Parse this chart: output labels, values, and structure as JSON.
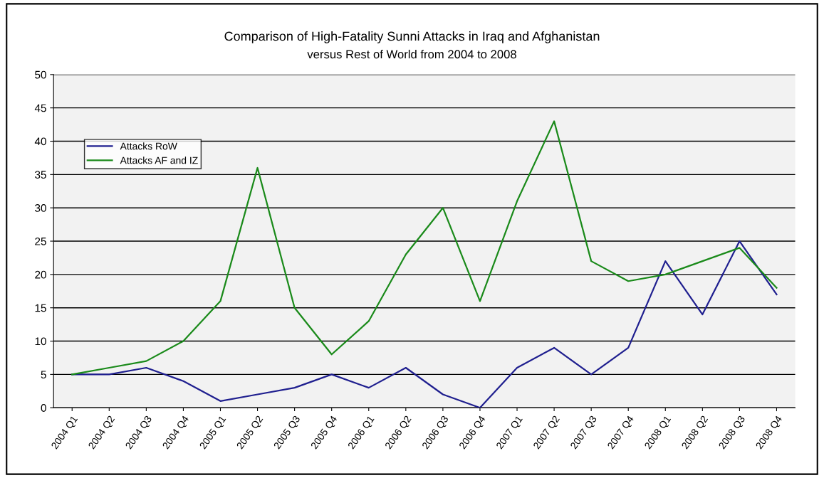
{
  "chart_data": {
    "type": "line",
    "title": "Comparison of High-Fatality Sunni Attacks in Iraq and Afghanistan",
    "subtitle": "versus Rest of World from 2004 to 2008",
    "categories": [
      "2004 Q1",
      "2004 Q2",
      "2004 Q3",
      "2004 Q4",
      "2005 Q1",
      "2005 Q2",
      "2005 Q3",
      "2005 Q4",
      "2006 Q1",
      "2006 Q2",
      "2006 Q3",
      "2006 Q4",
      "2007 Q1",
      "2007 Q2",
      "2007 Q3",
      "2007 Q4",
      "2008 Q1",
      "2008 Q2",
      "2008 Q3",
      "2008 Q4"
    ],
    "series": [
      {
        "name": "Attacks RoW",
        "color": "#1f1f8f",
        "values": [
          5,
          5,
          6,
          4,
          1,
          2,
          3,
          5,
          3,
          6,
          2,
          0,
          6,
          9,
          5,
          9,
          22,
          14,
          25,
          17
        ]
      },
      {
        "name": "Attacks AF and IZ",
        "color": "#1a8a1a",
        "values": [
          5,
          6,
          7,
          10,
          16,
          36,
          15,
          8,
          13,
          23,
          30,
          16,
          31,
          43,
          22,
          19,
          20,
          22,
          24,
          18
        ]
      }
    ],
    "ylim": [
      0,
      50
    ],
    "yticks": [
      0,
      5,
      10,
      15,
      20,
      25,
      30,
      35,
      40,
      45,
      50
    ],
    "grid": "y",
    "legend": "top left",
    "marker": "none",
    "line_style": "solid"
  }
}
